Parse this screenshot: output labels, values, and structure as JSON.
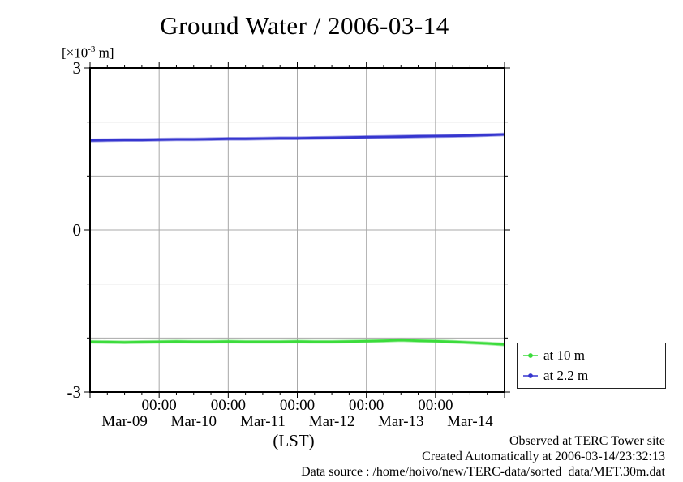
{
  "title": "Ground Water / 2006-03-14",
  "y_unit": {
    "prefix": "[×10",
    "exponent": "-3",
    "suffix": " m]"
  },
  "xlabel": "(LST)",
  "legend": {
    "items": [
      {
        "label": "at 10 m",
        "color": "#3cdc3c"
      },
      {
        "label": "at 2.2 m",
        "color": "#3636cf"
      }
    ]
  },
  "footer": {
    "lines": [
      "Observed at TERC Tower site",
      "Created Automatically at 2006-03-14/23:32:13",
      "Data source : /home/hoivo/new/TERC-data/sorted  data/MET.30m.dat"
    ]
  },
  "colors": {
    "grid": "#a8a8a8",
    "frame": "#000000",
    "series_green": "#3cdc3c",
    "series_blue": "#3636cf"
  },
  "chart_data": {
    "type": "line",
    "title": "Ground Water / 2006-03-14",
    "xlabel": "(LST)",
    "ylabel": "[×10-3 m]",
    "x_axis": "time, 2006-03-09 00:00 to 2006-03-15 00:00 LST, in days from Mar-09 00:00",
    "xlim": [
      0,
      6
    ],
    "ylim": [
      -3,
      3
    ],
    "grid": true,
    "legend_position": "outside-right-bottom",
    "y_ticks": [
      {
        "v": 3,
        "label": "3"
      },
      {
        "v": 0,
        "label": "0"
      },
      {
        "v": -3,
        "label": "-3"
      }
    ],
    "y_gridlines": [
      2,
      1,
      0,
      -1,
      -2
    ],
    "x_gridline_days": [
      1,
      2,
      3,
      4,
      5
    ],
    "x_minor_step_days": 0.25,
    "x_time_ticks": [
      {
        "day": 1,
        "label": "00:00"
      },
      {
        "day": 2,
        "label": "00:00"
      },
      {
        "day": 3,
        "label": "00:00"
      },
      {
        "day": 4,
        "label": "00:00"
      },
      {
        "day": 5,
        "label": "00:00"
      }
    ],
    "x_day_ticks": [
      {
        "day": 0.5,
        "label": "Mar-09"
      },
      {
        "day": 1.5,
        "label": "Mar-10"
      },
      {
        "day": 2.5,
        "label": "Mar-11"
      },
      {
        "day": 3.5,
        "label": "Mar-12"
      },
      {
        "day": 4.5,
        "label": "Mar-13"
      },
      {
        "day": 5.5,
        "label": "Mar-14"
      }
    ],
    "x_step_days": 0.25,
    "series": [
      {
        "name": "at 10 m",
        "color": "#3cdc3c",
        "values": [
          -2.07,
          -2.075,
          -2.08,
          -2.075,
          -2.07,
          -2.065,
          -2.07,
          -2.07,
          -2.065,
          -2.07,
          -2.07,
          -2.07,
          -2.065,
          -2.07,
          -2.07,
          -2.065,
          -2.06,
          -2.05,
          -2.04,
          -2.05,
          -2.06,
          -2.07,
          -2.085,
          -2.1,
          -2.12
        ]
      },
      {
        "name": "at 2.2 m",
        "color": "#3636cf",
        "values": [
          1.66,
          1.665,
          1.67,
          1.67,
          1.675,
          1.68,
          1.68,
          1.685,
          1.69,
          1.69,
          1.695,
          1.7,
          1.7,
          1.705,
          1.71,
          1.715,
          1.72,
          1.725,
          1.73,
          1.735,
          1.74,
          1.745,
          1.75,
          1.76,
          1.77
        ]
      }
    ]
  }
}
